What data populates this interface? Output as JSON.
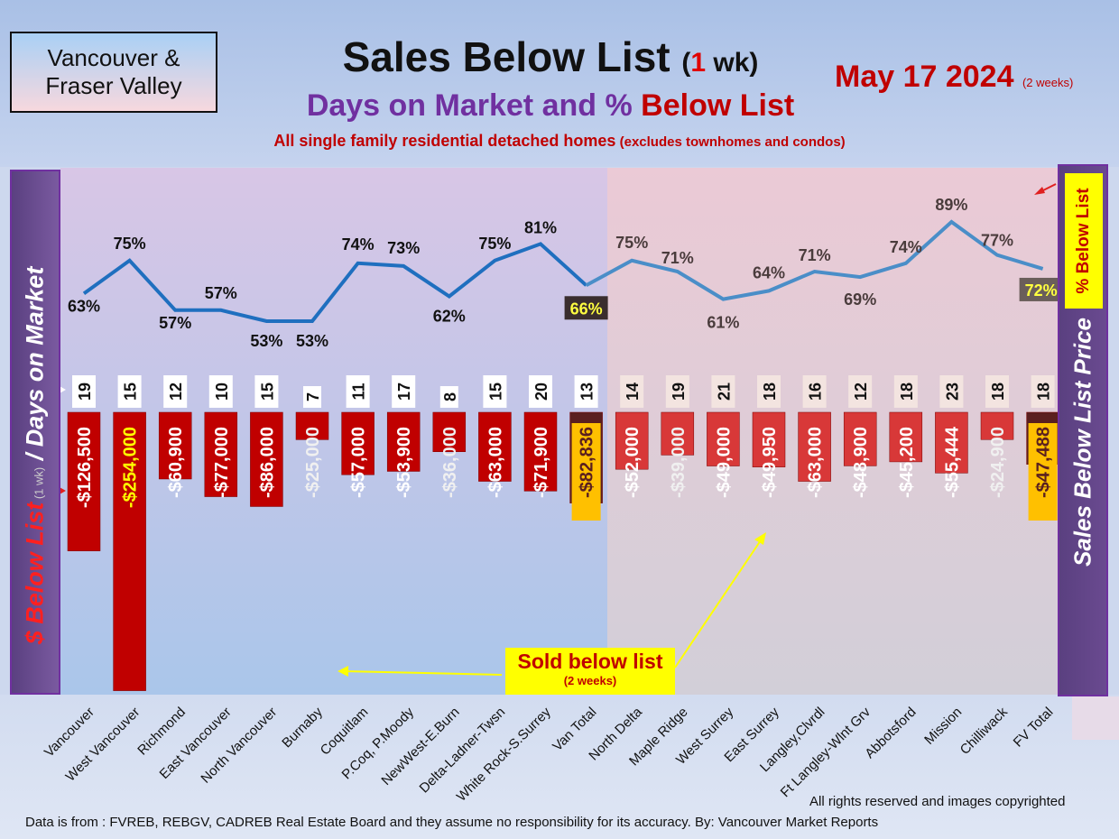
{
  "header": {
    "logo_line1": "Vancouver &",
    "logo_line2": "Fraser Valley",
    "title_main": "Sales Below List",
    "title_paren_open": "(",
    "title_paren_num": "1",
    "title_paren_rest": " wk)",
    "subtitle_part1": "Days on Market and % ",
    "subtitle_part2": "Below List",
    "note_main": "All single family residential detached homes",
    "note_paren": " (excludes townhomes and condos)",
    "date": "May 17  2024",
    "date_note": "(2 weeks)"
  },
  "left_axis": {
    "part1": "$ Below List",
    "part2": " (1 wk)",
    "part3": " / Days on Market"
  },
  "right_axis": {
    "label": "Sales Below List Price",
    "pct_label": "% Below List"
  },
  "callout": {
    "line1": "Sold below list",
    "line2": "(2 weeks)"
  },
  "footer": {
    "copyright": "All rights reserved and  images copyrighted",
    "source": "Data is from : FVREB, REBGV, CADREB Real Estate Board and they assume no responsibility for its accuracy. By: Vancouver Market Reports"
  },
  "colors": {
    "bar_red": "#c00000",
    "bar_red_fv": "#d83838",
    "total_bar": "#5a1f1f",
    "line_van": "#1f6fbf",
    "line_fv": "#4a8ec8",
    "total_label_bg": "#ffc000"
  },
  "chart_data": {
    "type": "bar",
    "categories": [
      "Vancouver",
      "West Vancouver",
      "Richmond",
      "East Vancouver",
      "North Vancouver",
      "Burnaby",
      "Coquitlam",
      "P.Coq, P.Moody",
      "NewWest-E.Burn",
      "Delta-Ladner-Twsn",
      "White Rock-S.Surrey",
      "Van Total",
      "North Delta",
      "Maple Ridge",
      "West Surrey",
      "East Surrey",
      "Langley,Clvrdl",
      "Ft Langley-Wlnt Grv",
      "Abbotsford",
      "Mission",
      "Chilliwack",
      "FV Total"
    ],
    "series": [
      {
        "type": "bar",
        "values": [
          -126500,
          -254000,
          -60900,
          -77000,
          -86000,
          -25000,
          -57000,
          -53900,
          -36000,
          -63000,
          -71900,
          -82836,
          -52000,
          -39000,
          -49000,
          -49950,
          -63000,
          -48900,
          -45200,
          -55444,
          -24900,
          -47488
        ],
        "labels": [
          "-$126,500",
          "-$254,000",
          "-$60,900",
          "-$77,000",
          "-$86,000",
          "-$25,000",
          "-$57,000",
          "-$53,900",
          "-$36,000",
          "-$63,000",
          "-$71,900",
          "-$82,836",
          "-$52,000",
          "-$39,000",
          "-$49,000",
          "-$49,950",
          "-$63,000",
          "-$48,900",
          "-$45,200",
          "-$55,444",
          "-$24,900",
          "-$47,488"
        ]
      },
      {
        "type": "data-label",
        "values": [
          19,
          15,
          12,
          10,
          15,
          7,
          11,
          17,
          8,
          15,
          20,
          13,
          14,
          19,
          21,
          18,
          16,
          12,
          18,
          23,
          18,
          18
        ],
        "labels": [
          "19",
          "15",
          "12",
          "10",
          "15",
          "7",
          "11",
          "17",
          "8",
          "15",
          "20",
          "13",
          "14",
          "19",
          "21",
          "18",
          "16",
          "12",
          "18",
          "23",
          "18",
          "18"
        ]
      },
      {
        "type": "line",
        "values": [
          63,
          75,
          57,
          57,
          53,
          53,
          74,
          73,
          62,
          75,
          81,
          66,
          75,
          71,
          61,
          64,
          71,
          69,
          74,
          89,
          77,
          72
        ],
        "labels": [
          "63%",
          "75%",
          "57%",
          "57%",
          "53%",
          "53%",
          "74%",
          "73%",
          "62%",
          "75%",
          "81%",
          "66%",
          "75%",
          "71%",
          "61%",
          "64%",
          "71%",
          "69%",
          "74%",
          "89%",
          "77%",
          "72%"
        ]
      }
    ]
  }
}
